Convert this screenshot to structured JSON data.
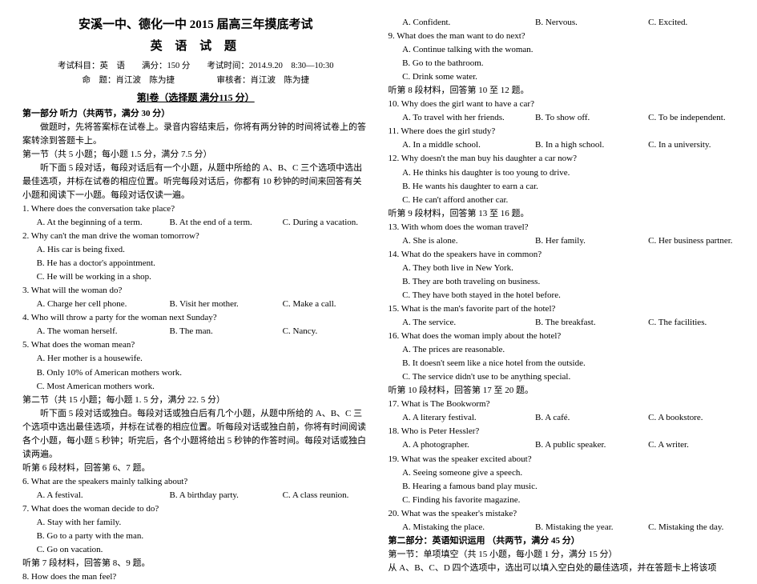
{
  "header": {
    "title_main": "安溪一中、德化一中 2015 届高三年摸底考试",
    "title_sub": "英 语 试 题",
    "meta1": "考试科目：英　语　　满分：150 分　　考试时间：2014.9.20　8:30—10:30",
    "meta2": "命　题：肖江波　陈为捷　　　　　审核者：肖江波　陈为捷",
    "section1": "第Ⅰ卷（选择题 满分115 分）"
  },
  "left": {
    "part1": "第一部分 听力（共两节，满分 30 分）",
    "instr1": "做题时，先将答案标在试卷上。录音内容结束后，你将有两分钟的时间将试卷上的答案转涂到答题卡上。",
    "sec1": "第一节（共 5 小题；每小题 1.5 分，满分 7.5 分）",
    "instr2": "听下面 5 段对话，每段对话后有一个小题，从题中所给的 A、B、C 三个选项中选出最佳选项，并标在试卷的相应位置。听完每段对话后，你都有 10 秒钟的时间来回答有关小题和阅读下一小题。每段对话仅读一遍。",
    "q1": "1. Where does the conversation take place?",
    "q1a": "A. At the beginning of a term.",
    "q1b": "B. At the end of a term.",
    "q1c": "C. During a vacation.",
    "q2": "2. Why can't the man drive the woman tomorrow?",
    "q2a": "A. His car is being fixed.",
    "q2b": "B. He has a doctor's appointment.",
    "q2c": "C. He will be working in a shop.",
    "q3": "3. What will the woman do?",
    "q3a": "A. Charge her cell phone.",
    "q3b": "B. Visit her mother.",
    "q3c": "C. Make a call.",
    "q4": "4. Who will throw a party for the woman next Sunday?",
    "q4a": "A. The woman herself.",
    "q4b": "B. The man.",
    "q4c": "C. Nancy.",
    "q5": "5. What does the woman mean?",
    "q5a": "A. Her mother is a housewife.",
    "q5b": "B. Only 10% of American mothers work.",
    "q5c": "C. Most American mothers work.",
    "sec2": "第二节（共 15 小题；每小题 1. 5 分，满分 22. 5 分）",
    "instr3": "听下面 5 段对话或独白。每段对话或独白后有几个小题，从题中所给的 A、B、C 三个选项中选出最佳选项，并标在试卷的相应位置。听每段对话或独白前，你将有时间阅读各个小题，每小题 5 秒钟；听完后，各个小题将给出 5 秒钟的作答时间。每段对话或独白读两遍。",
    "mat6": "听第 6 段材料，回答第 6、7 题。",
    "q6": "6. What are the speakers mainly talking about?",
    "q6a": "A. A festival.",
    "q6b": "B. A birthday party.",
    "q6c": "C. A class reunion.",
    "q7": "7. What does the woman decide to do?",
    "q7a": "A. Stay with her family.",
    "q7b": "B. Go to a party with the man.",
    "q7c": "C. Go on vacation.",
    "mat8": "听第 7 段材料，回答第 8、9 题。",
    "q8": "8. How does the man feel?"
  },
  "right": {
    "q8a": "A. Confident.",
    "q8b": "B. Nervous.",
    "q8c": "C. Excited.",
    "q9": "9. What does the man want to do next?",
    "q9a": "A. Continue talking with the woman.",
    "q9b": "B. Go to the bathroom.",
    "q9c": "C. Drink some water.",
    "mat10": "听第 8 段材料，回答第 10 至 12 题。",
    "q10": "10. Why does the girl want to have a car?",
    "q10a": "A. To travel with her friends.",
    "q10b": "B. To show off.",
    "q10c": "C. To be independent.",
    "q11": "11. Where does the girl study?",
    "q11a": "A. In a middle school.",
    "q11b": "B. In a high school.",
    "q11c": "C. In a university.",
    "q12": "12. Why doesn't the man buy his daughter a car now?",
    "q12a": "A. He thinks his daughter is too young to drive.",
    "q12b": "B. He wants his daughter to earn a car.",
    "q12c": "C. He can't afford another car.",
    "mat13": "听第 9 段材料，回答第 13 至 16 题。",
    "q13": "13. With whom does the woman travel?",
    "q13a": "A. She is alone.",
    "q13b": "B. Her family.",
    "q13c": "C. Her business partner.",
    "q14": "14. What do the speakers have in common?",
    "q14a": "A. They both live in New York.",
    "q14b": "B. They are both traveling on business.",
    "q14c": "C. They have both stayed in the hotel before.",
    "q15": "15. What is the man's favorite part of the hotel?",
    "q15a": "A. The service.",
    "q15b": "B. The breakfast.",
    "q15c": "C. The facilities.",
    "q16": "16. What does the woman imply about the hotel?",
    "q16a": "A. The prices are reasonable.",
    "q16b": "B. It doesn't seem like a nice hotel from the outside.",
    "q16c": "C. The service didn't use to be anything special.",
    "mat17": "听第 10 段材料，回答第 17 至 20 题。",
    "q17": "17. What is The Bookworm?",
    "q17a": "A. A literary festival.",
    "q17b": "B. A café.",
    "q17c": "C. A bookstore.",
    "q18": "18. Who is Peter Hessler?",
    "q18a": "A. A photographer.",
    "q18b": "B. A public speaker.",
    "q18c": "C. A writer.",
    "q19": "19. What was the speaker excited about?",
    "q19a": "A. Seeing someone give a speech.",
    "q19b": "B. Hearing a famous band play music.",
    "q19c": "C. Finding his favorite magazine.",
    "q20": "20. What was the speaker's mistake?",
    "q20a": "A. Mistaking the place.",
    "q20b": "B. Mistaking the year.",
    "q20c": "C. Mistaking the day.",
    "part2": "第二部分：英语知识运用 （共两节，满分 45 分）",
    "sec21": "第一节：单项填空（共 15 小题，每小题 1 分，满分 15 分）",
    "instr4": "从 A、B、C、D 四个选项中，选出可以填入空白处的最佳选项，并在答题卡上将该项"
  }
}
